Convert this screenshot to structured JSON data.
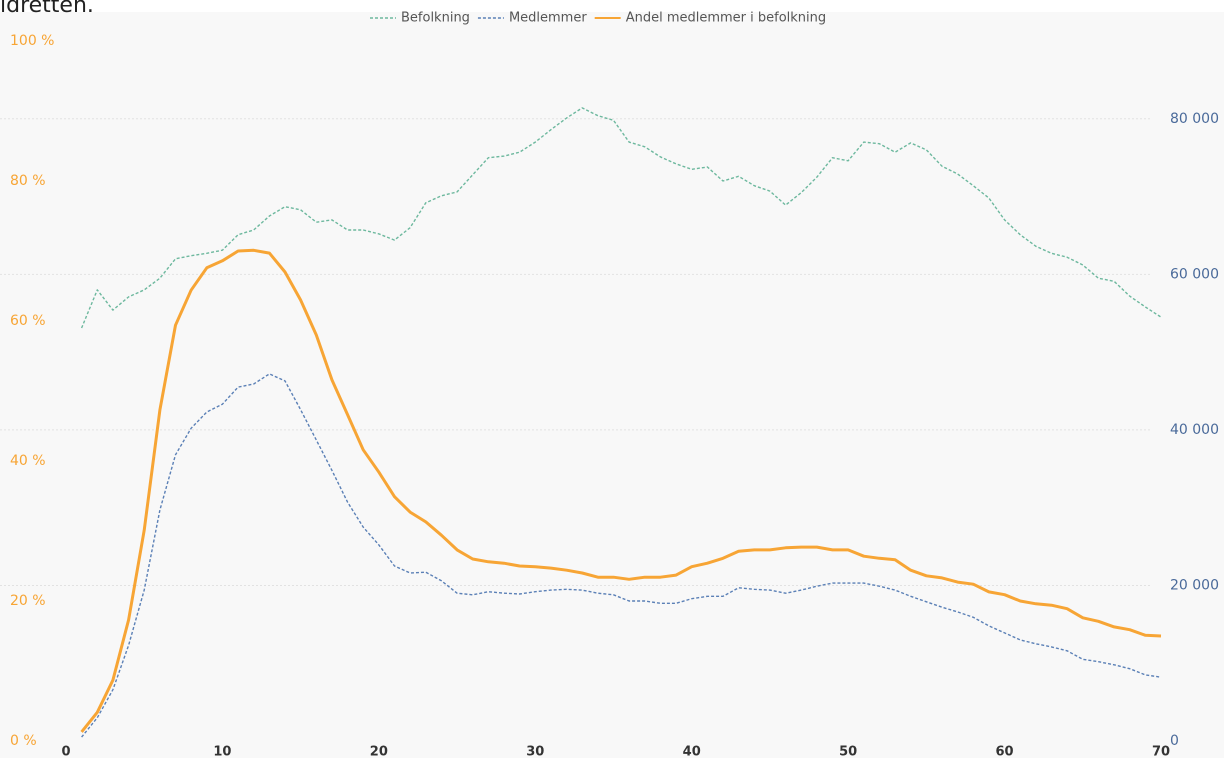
{
  "chart_data": {
    "type": "line",
    "title": "idretten.",
    "x": [
      1,
      2,
      3,
      4,
      5,
      6,
      7,
      8,
      9,
      10,
      11,
      12,
      13,
      14,
      15,
      16,
      17,
      18,
      19,
      20,
      21,
      22,
      23,
      24,
      25,
      26,
      27,
      28,
      29,
      30,
      31,
      32,
      33,
      34,
      35,
      36,
      37,
      38,
      39,
      40,
      41,
      42,
      43,
      44,
      45,
      46,
      47,
      48,
      49,
      50,
      51,
      52,
      53,
      54,
      55,
      56,
      57,
      58,
      59,
      60,
      61,
      62,
      63,
      64,
      65,
      66,
      67,
      68,
      69,
      70
    ],
    "xlim": [
      0,
      70
    ],
    "xticks": [
      0,
      10,
      20,
      30,
      40,
      50,
      60,
      70
    ],
    "ylim": [
      0,
      100
    ],
    "yticks": [
      {
        "value": 0,
        "label": "0 %"
      },
      {
        "value": 20,
        "label": "20 %"
      },
      {
        "value": 40,
        "label": "40 %"
      },
      {
        "value": 60,
        "label": "60 %"
      },
      {
        "value": 80,
        "label": "80 %"
      },
      {
        "value": 100,
        "label": "100 %"
      }
    ],
    "y2lim": [
      0,
      90000
    ],
    "y2ticks": [
      0,
      {
        "value": 20000,
        "label": "20 000"
      },
      {
        "value": 40000,
        "label": "40 000"
      },
      {
        "value": 60000,
        "label": "60 000"
      },
      {
        "value": 80000,
        "label": "80 000"
      }
    ],
    "grid": true,
    "legend": "top",
    "series": [
      {
        "name": "Befolkning",
        "color": "#6db89e",
        "axis": "y2",
        "dashed": true,
        "values": [
          53100,
          58000,
          55400,
          57100,
          58000,
          59500,
          62000,
          62400,
          62700,
          63100,
          65100,
          65700,
          67500,
          68700,
          68300,
          66700,
          67000,
          65700,
          65700,
          65200,
          64400,
          66000,
          69200,
          70100,
          70600,
          72800,
          75000,
          75200,
          75700,
          77000,
          78600,
          80100,
          81400,
          80400,
          79800,
          77000,
          76400,
          75100,
          74200,
          73500,
          73800,
          72000,
          72600,
          71400,
          70700,
          68900,
          70500,
          72500,
          75000,
          74600,
          77000,
          76800,
          75700,
          76900,
          76000,
          73900,
          72900,
          71400,
          69800,
          67000,
          65100,
          63600,
          62700,
          62200,
          61200,
          59500,
          59100,
          57200,
          55800,
          54500
        ]
      },
      {
        "name": "Medlemmer",
        "color": "#5b80b6",
        "axis": "y2",
        "dashed": true,
        "values": [
          500,
          3000,
          6600,
          12300,
          19400,
          29700,
          36800,
          40200,
          42300,
          43300,
          45500,
          45900,
          47200,
          46300,
          42600,
          38700,
          34800,
          30700,
          27500,
          25200,
          22500,
          21600,
          21700,
          20600,
          19000,
          18800,
          19200,
          19000,
          18900,
          19200,
          19400,
          19500,
          19400,
          19000,
          18800,
          18000,
          18000,
          17700,
          17700,
          18300,
          18600,
          18600,
          19700,
          19500,
          19400,
          19000,
          19400,
          19900,
          20300,
          20300,
          20300,
          19900,
          19400,
          18600,
          17900,
          17200,
          16600,
          15900,
          14800,
          13900,
          13000,
          12500,
          12100,
          11600,
          10500,
          10200,
          9800,
          9300,
          8500,
          8200
        ]
      },
      {
        "name": "Andel medlemmer i befolkning",
        "color": "#f7a535",
        "dashed": false,
        "values": [
          1.3,
          4.1,
          8.7,
          17.3,
          30.1,
          47.3,
          59.4,
          64.4,
          67.6,
          68.6,
          70.0,
          70.1,
          69.7,
          67.0,
          63.0,
          58.0,
          51.6,
          46.6,
          41.6,
          38.4,
          34.9,
          32.7,
          31.3,
          29.4,
          27.3,
          26.0,
          25.6,
          25.4,
          25.0,
          24.9,
          24.7,
          24.4,
          24.0,
          23.4,
          23.4,
          23.1,
          23.4,
          23.4,
          23.7,
          24.9,
          25.4,
          26.1,
          27.1,
          27.3,
          27.3,
          27.6,
          27.7,
          27.7,
          27.3,
          27.3,
          26.4,
          26.1,
          25.9,
          24.4,
          23.6,
          23.3,
          22.7,
          22.4,
          21.3,
          20.9,
          20.0,
          19.6,
          19.4,
          18.9,
          17.6,
          17.1,
          16.3,
          15.9,
          15.1,
          15.0
        ]
      }
    ]
  }
}
